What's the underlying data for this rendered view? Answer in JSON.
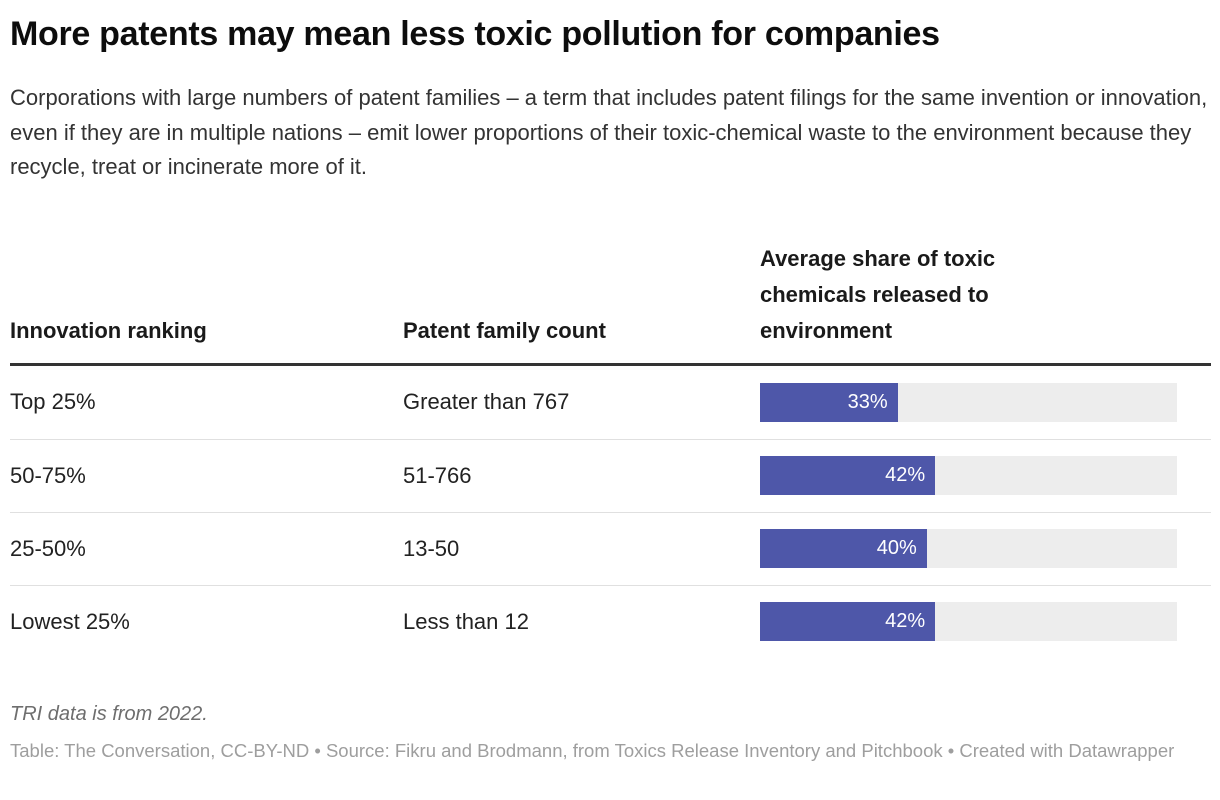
{
  "header": {
    "title": "More patents may mean less toxic pollution for companies",
    "description": "Corporations with large numbers of patent families – a term that includes patent filings for the same invention or innovation, even if they are in multiple nations – emit lower proportions of their toxic-chemical waste to the environment because they recycle, treat or incinerate more of it."
  },
  "table": {
    "columns": {
      "ranking": "Innovation ranking",
      "patent_count": "Patent family count",
      "share": "Average share of toxic chemicals released to environment"
    },
    "rows": [
      {
        "ranking": "Top 25%",
        "patent_count": "Greater than 767",
        "value": 33,
        "label": "33%"
      },
      {
        "ranking": "50-75%",
        "patent_count": "51-766",
        "value": 42,
        "label": "42%"
      },
      {
        "ranking": "25-50%",
        "patent_count": "13-50",
        "value": 40,
        "label": "40%"
      },
      {
        "ranking": "Lowest 25%",
        "patent_count": "Less than 12",
        "value": 42,
        "label": "42%"
      }
    ]
  },
  "footer": {
    "note": "TRI data is from 2022.",
    "attribution": "Table: The Conversation, CC-BY-ND • Source: Fikru and Brodmann, from Toxics Release Inventory and Pitchbook • Created with Datawrapper"
  },
  "colors": {
    "bar_fill": "#4e57a9",
    "bar_track": "#ededed",
    "header_rule": "#333333",
    "row_separator": "#e0e0e0"
  },
  "chart_data": {
    "type": "bar",
    "title": "More patents may mean less toxic pollution for companies",
    "categories": [
      "Top 25%",
      "50-75%",
      "25-50%",
      "Lowest 25%"
    ],
    "category_detail": [
      "Greater than 767",
      "51-766",
      "13-50",
      "Less than 12"
    ],
    "values": [
      33,
      42,
      40,
      42
    ],
    "value_labels": [
      "33%",
      "42%",
      "40%",
      "42%"
    ],
    "xlabel": "Innovation ranking",
    "ylabel": "Average share of toxic chemicals released to environment",
    "value_suffix": "%",
    "xlim": [
      0,
      100
    ],
    "grid": false,
    "legend": false,
    "orientation": "horizontal"
  }
}
